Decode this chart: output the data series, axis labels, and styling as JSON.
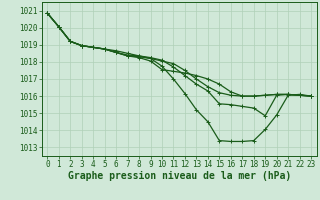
{
  "title": "Graphe pression niveau de la mer (hPa)",
  "hours": [
    0,
    1,
    2,
    3,
    4,
    5,
    6,
    7,
    8,
    9,
    10,
    11,
    12,
    13,
    14,
    15,
    16,
    17,
    18,
    19,
    20,
    21,
    22,
    23
  ],
  "ylim": [
    1012.5,
    1021.5
  ],
  "yticks": [
    1013,
    1014,
    1015,
    1016,
    1017,
    1018,
    1019,
    1020,
    1021
  ],
  "xlim": [
    -0.5,
    23.5
  ],
  "bg_color": "#d0e8d8",
  "grid_color": "#b0d0b8",
  "line_color": "#1a5c1a",
  "series": [
    [
      1020.85,
      1020.05,
      1019.2,
      1018.95,
      1018.85,
      1018.75,
      1018.65,
      1018.5,
      1018.35,
      1018.2,
      1018.05,
      1017.9,
      1017.5,
      1017.0,
      1016.55,
      1016.2,
      1016.05,
      1016.0,
      1016.0,
      1016.05,
      1016.1,
      1016.1,
      1016.05,
      1016.0
    ],
    [
      1020.85,
      1020.05,
      1019.2,
      1018.95,
      1018.85,
      1018.75,
      1018.55,
      1018.4,
      1018.35,
      1018.25,
      1018.1,
      1017.7,
      1017.2,
      1016.7,
      1016.3,
      1015.55,
      1015.5,
      1015.4,
      1015.3,
      1014.85,
      1016.05,
      1016.1,
      1016.05,
      1016.0
    ],
    [
      1020.85,
      1020.05,
      1019.2,
      1018.95,
      1018.85,
      1018.75,
      1018.55,
      1018.35,
      1018.3,
      1018.2,
      1017.75,
      1017.0,
      1016.15,
      1015.2,
      1014.5,
      1013.4,
      1013.35,
      1013.35,
      1013.4,
      1014.05,
      1014.9,
      1016.05,
      1016.1,
      1016.0
    ],
    [
      1020.85,
      1020.05,
      1019.2,
      1018.95,
      1018.85,
      1018.75,
      1018.55,
      1018.35,
      1018.25,
      1018.05,
      1017.55,
      1017.45,
      1017.35,
      1017.2,
      1017.0,
      1016.7,
      1016.25,
      1016.0,
      1016.0,
      1016.05,
      1016.1,
      1016.1,
      1016.05,
      1016.0
    ]
  ],
  "marker": "+",
  "marker_size": 3,
  "linewidth": 0.9,
  "title_fontsize": 7,
  "tick_fontsize": 5.5,
  "title_color": "#1a5c1a",
  "tick_color": "#1a5c1a"
}
